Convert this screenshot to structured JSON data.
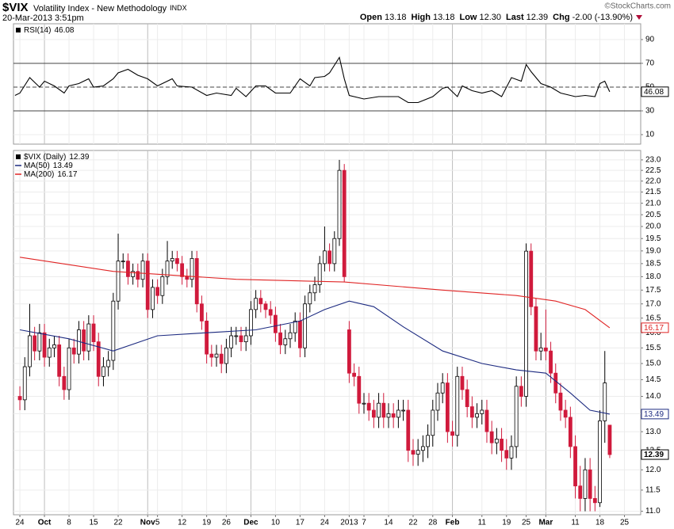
{
  "header": {
    "symbol": "$VIX",
    "name": "Volatility Index - New Methodology",
    "exchange": "INDX",
    "datetime": "20-Mar-2013 3:51pm",
    "watermark": "©StockCharts.com",
    "quote": [
      {
        "label": "Open",
        "value": "13.18"
      },
      {
        "label": "High",
        "value": "13.18"
      },
      {
        "label": "Low",
        "value": "12.30"
      },
      {
        "label": "Last",
        "value": "12.39"
      },
      {
        "label": "Chg",
        "value": "-2.00 (-13.90%)"
      }
    ]
  },
  "chart_data": [
    {
      "type": "line",
      "xlim": [
        -1.3,
        126.3
      ],
      "ylim": [
        2,
        103.3
      ],
      "yticks": [
        10,
        30,
        50,
        70,
        90
      ],
      "grid": true,
      "hlines": [
        {
          "value": 70,
          "style": "solid"
        },
        {
          "value": 50,
          "style": "dashed"
        },
        {
          "value": 30,
          "style": "solid"
        }
      ],
      "series": [
        {
          "name": "RSI(14)",
          "color": "#000000",
          "x": [
            -1,
            0,
            2,
            4,
            5,
            7,
            9,
            10,
            12,
            14,
            15,
            17,
            19,
            20,
            22,
            24,
            26,
            28,
            31,
            32,
            35,
            38,
            40,
            43,
            44,
            46,
            48,
            50,
            52,
            55,
            57,
            59,
            60,
            62,
            63,
            65,
            66,
            67,
            70,
            73,
            77,
            79,
            81,
            84,
            86,
            87,
            89,
            90,
            92,
            94,
            96,
            98,
            100,
            102,
            103,
            104,
            106,
            108,
            110,
            113,
            115,
            117,
            118,
            119,
            120
          ],
          "values": [
            43,
            45,
            58,
            50,
            55,
            51,
            45,
            51,
            53,
            57,
            50,
            51,
            57,
            62,
            65,
            60,
            57,
            51,
            57,
            51,
            50,
            43,
            45,
            43,
            49,
            42,
            51,
            51,
            45,
            45,
            57,
            51,
            58,
            59,
            62,
            75,
            57,
            43,
            40,
            42,
            42,
            37,
            37,
            42,
            49,
            50,
            42,
            51,
            47,
            45,
            47,
            42,
            58,
            55,
            69,
            63,
            53,
            50,
            45,
            42,
            43,
            42,
            53,
            55,
            46.08
          ]
        }
      ]
    },
    {
      "type": "candlestick",
      "name": "$VIX (Daily)",
      "log": true,
      "grid": true,
      "up_color": "#000000",
      "down_color": "#d01a3c",
      "xlim": [
        -1.3,
        126.3
      ],
      "ylim": [
        10.92,
        23.46
      ],
      "xticks": [
        {
          "value": 0,
          "label": "24"
        },
        {
          "value": 5,
          "label": "Oct"
        },
        {
          "value": 10,
          "label": "8"
        },
        {
          "value": 15,
          "label": "15"
        },
        {
          "value": 20,
          "label": "22"
        },
        {
          "value": 26,
          "label": "Nov"
        },
        {
          "value": 28,
          "label": "5"
        },
        {
          "value": 33,
          "label": "12"
        },
        {
          "value": 38,
          "label": "19"
        },
        {
          "value": 42,
          "label": "26"
        },
        {
          "value": 47,
          "label": "Dec"
        },
        {
          "value": 52,
          "label": "10"
        },
        {
          "value": 57,
          "label": "17"
        },
        {
          "value": 62,
          "label": "24"
        },
        {
          "value": 67,
          "label": "2013"
        },
        {
          "value": 70,
          "label": "7"
        },
        {
          "value": 75,
          "label": "14"
        },
        {
          "value": 80,
          "label": "22"
        },
        {
          "value": 84,
          "label": "28"
        },
        {
          "value": 88,
          "label": "Feb"
        },
        {
          "value": 94,
          "label": "11"
        },
        {
          "value": 99,
          "label": "19"
        },
        {
          "value": 103,
          "label": "25"
        },
        {
          "value": 107,
          "label": "Mar"
        },
        {
          "value": 113,
          "label": "11"
        },
        {
          "value": 118,
          "label": "18"
        },
        {
          "value": 123,
          "label": "25"
        }
      ],
      "yticks": [
        {
          "value": 11,
          "label": "11.0"
        },
        {
          "value": 11.5,
          "label": "11.5"
        },
        {
          "value": 12,
          "label": "12.0"
        },
        {
          "value": 12.5,
          "label": "12.5"
        },
        {
          "value": 13,
          "label": "13.0"
        },
        {
          "value": 13.5,
          "label": "13.5"
        },
        {
          "value": 14,
          "label": "14.0"
        },
        {
          "value": 14.5,
          "label": "14.5"
        },
        {
          "value": 15,
          "label": "15.0"
        },
        {
          "value": 15.5,
          "label": "15.5"
        },
        {
          "value": 16,
          "label": "16.0"
        },
        {
          "value": 16.5,
          "label": "16.5"
        },
        {
          "value": 17,
          "label": "17.0"
        },
        {
          "value": 17.5,
          "label": "17.5"
        },
        {
          "value": 18,
          "label": "18.0"
        },
        {
          "value": 18.5,
          "label": "18.5"
        },
        {
          "value": 19,
          "label": "19.0"
        },
        {
          "value": 19.5,
          "label": "19.5"
        },
        {
          "value": 20,
          "label": "20.0"
        },
        {
          "value": 20.5,
          "label": "20.5"
        },
        {
          "value": 21,
          "label": "21.0"
        },
        {
          "value": 21.5,
          "label": "21.5"
        },
        {
          "value": 22,
          "label": "22.0"
        },
        {
          "value": 22.5,
          "label": "22.5"
        },
        {
          "value": 23,
          "label": "23.0"
        }
      ],
      "open": [
        14.0,
        13.9,
        14.9,
        15.9,
        15.4,
        16.0,
        15.2,
        15.5,
        15.6,
        14.6,
        14.2,
        15.5,
        15.3,
        16.1,
        15.4,
        16.3,
        15.7,
        14.6,
        14.9,
        15.1,
        17.1,
        18.6,
        18.6,
        18.0,
        18.2,
        17.9,
        18.6,
        16.8,
        17.6,
        17.3,
        18.0,
        18.6,
        18.7,
        18.5,
        18.0,
        17.9,
        18.7,
        17.0,
        16.4,
        15.3,
        15.2,
        15.3,
        15.0,
        15.5,
        15.9,
        15.9,
        15.7,
        15.9,
        16.8,
        17.2,
        17.0,
        16.8,
        16.6,
        16.0,
        15.6,
        15.8,
        16.0,
        16.4,
        15.5,
        17.0,
        17.4,
        17.7,
        18.5,
        19.0,
        18.5,
        19.5,
        22.5,
        16.1,
        14.7,
        14.6,
        13.8,
        13.8,
        13.6,
        13.4,
        13.8,
        13.4,
        13.5,
        13.4,
        13.6,
        13.6,
        12.5,
        12.4,
        12.5,
        12.6,
        12.9,
        13.6,
        14.1,
        14.4,
        13.0,
        12.9,
        14.6,
        14.2,
        13.7,
        13.4,
        13.5,
        13.6,
        13.0,
        12.7,
        12.8,
        12.5,
        12.3,
        12.6,
        14.3,
        14.0,
        18.99,
        16.9,
        15.4,
        15.5,
        15.4,
        14.7,
        14.1,
        13.6,
        13.4,
        12.6,
        11.6,
        11.3,
        12.0,
        11.3,
        11.2,
        13.3,
        13.18
      ],
      "high": [
        14.3,
        15.2,
        17.0,
        16.2,
        16.3,
        16.3,
        15.8,
        15.9,
        15.9,
        14.9,
        15.8,
        15.8,
        16.4,
        16.4,
        16.6,
        16.6,
        16.0,
        15.2,
        15.4,
        17.4,
        19.7,
        18.9,
        18.9,
        18.5,
        18.5,
        18.9,
        18.9,
        17.9,
        17.9,
        18.3,
        19.4,
        19.0,
        19.0,
        18.8,
        18.3,
        19.0,
        19.0,
        17.3,
        16.7,
        15.6,
        15.6,
        15.6,
        15.8,
        16.2,
        16.2,
        16.2,
        16.2,
        17.1,
        17.5,
        17.5,
        17.1,
        17.1,
        16.9,
        16.3,
        16.1,
        16.3,
        16.7,
        16.7,
        17.3,
        17.7,
        18.0,
        18.8,
        20.0,
        19.3,
        19.8,
        23.0,
        22.8,
        16.4,
        15.0,
        14.9,
        14.1,
        14.1,
        13.9,
        14.1,
        14.1,
        13.8,
        13.8,
        13.9,
        13.9,
        13.9,
        12.8,
        12.8,
        12.9,
        13.2,
        13.9,
        14.4,
        14.7,
        14.7,
        13.3,
        14.9,
        14.9,
        14.5,
        14.0,
        13.8,
        13.9,
        13.9,
        13.3,
        13.1,
        13.1,
        12.8,
        12.9,
        14.6,
        14.6,
        19.3,
        19.3,
        17.2,
        16.0,
        16.8,
        15.7,
        15.0,
        14.4,
        13.9,
        13.7,
        12.9,
        12.1,
        12.3,
        12.3,
        11.6,
        13.6,
        15.4,
        13.18
      ],
      "low": [
        13.6,
        13.6,
        14.6,
        15.1,
        15.1,
        14.9,
        14.9,
        15.2,
        14.3,
        13.9,
        13.9,
        15.0,
        15.0,
        15.1,
        15.1,
        15.4,
        14.3,
        14.3,
        14.6,
        14.8,
        16.8,
        18.3,
        17.7,
        17.7,
        17.6,
        17.6,
        16.5,
        16.5,
        17.0,
        17.0,
        17.7,
        18.3,
        18.2,
        17.7,
        17.6,
        17.6,
        16.7,
        16.1,
        15.0,
        14.9,
        14.9,
        14.7,
        14.7,
        15.2,
        15.6,
        15.4,
        15.4,
        15.6,
        16.5,
        16.7,
        16.5,
        16.3,
        15.7,
        15.3,
        15.3,
        15.5,
        15.7,
        15.2,
        15.2,
        16.7,
        17.1,
        17.4,
        18.2,
        18.2,
        18.2,
        19.2,
        17.8,
        14.4,
        14.3,
        13.5,
        13.5,
        13.3,
        13.1,
        13.1,
        13.1,
        13.1,
        13.1,
        13.1,
        13.3,
        12.2,
        12.1,
        12.1,
        12.2,
        12.3,
        12.6,
        13.3,
        13.8,
        12.7,
        12.6,
        12.6,
        13.9,
        13.4,
        13.1,
        13.1,
        13.2,
        12.7,
        12.4,
        12.4,
        12.2,
        12.0,
        12.0,
        12.3,
        13.7,
        13.7,
        16.6,
        15.1,
        15.1,
        15.1,
        14.4,
        13.8,
        13.3,
        13.1,
        12.3,
        11.3,
        11.0,
        11.0,
        11.0,
        11.0,
        11.1,
        12.7,
        12.3
      ],
      "close": [
        13.9,
        14.9,
        15.9,
        15.4,
        16.0,
        15.2,
        15.5,
        15.6,
        14.6,
        14.2,
        15.5,
        15.3,
        16.1,
        15.4,
        16.3,
        15.7,
        14.6,
        14.9,
        15.1,
        17.1,
        18.6,
        18.6,
        18.0,
        18.2,
        17.9,
        18.6,
        16.8,
        17.6,
        17.3,
        18.0,
        18.6,
        18.7,
        18.5,
        18.0,
        17.9,
        18.7,
        17.0,
        16.4,
        15.3,
        15.2,
        15.3,
        15.0,
        15.5,
        15.9,
        15.9,
        15.7,
        15.9,
        16.8,
        17.2,
        17.0,
        16.8,
        16.6,
        16.0,
        15.6,
        15.8,
        16.0,
        16.4,
        15.5,
        17.0,
        17.4,
        17.7,
        18.5,
        19.0,
        18.5,
        19.5,
        22.5,
        18.0,
        14.7,
        14.6,
        13.8,
        13.8,
        13.6,
        13.4,
        13.8,
        13.4,
        13.5,
        13.4,
        13.6,
        13.6,
        12.5,
        12.4,
        12.5,
        12.6,
        12.9,
        13.6,
        14.1,
        14.4,
        13.0,
        12.9,
        14.6,
        14.2,
        13.7,
        13.4,
        13.5,
        13.6,
        13.0,
        12.7,
        12.8,
        12.5,
        12.3,
        12.6,
        14.3,
        14.0,
        18.99,
        16.9,
        15.4,
        15.5,
        15.4,
        14.7,
        14.1,
        13.6,
        13.4,
        12.6,
        11.6,
        11.3,
        12.0,
        11.3,
        11.2,
        13.3,
        14.4,
        12.39
      ],
      "series": [
        {
          "name": "MA(50)",
          "color": "#1c2a80",
          "x": [
            0,
            10,
            19,
            28,
            38,
            48,
            57,
            62,
            67,
            72,
            78,
            86,
            94,
            101,
            107,
            112,
            116,
            120
          ],
          "values": [
            16.1,
            15.8,
            15.4,
            15.9,
            16.0,
            16.1,
            16.4,
            16.8,
            17.1,
            16.9,
            16.2,
            15.4,
            15.0,
            14.8,
            14.7,
            14.1,
            13.6,
            13.49
          ]
        },
        {
          "name": "MA(200)",
          "color": "#e02424",
          "x": [
            0,
            19,
            44,
            66,
            86,
            101,
            109,
            115,
            120
          ],
          "values": [
            18.75,
            18.2,
            17.9,
            17.8,
            17.5,
            17.3,
            17.1,
            16.8,
            16.17
          ]
        }
      ]
    }
  ]
}
